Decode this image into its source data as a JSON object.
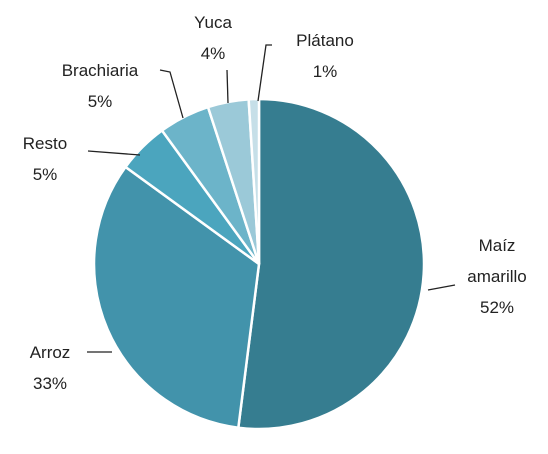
{
  "chart_data": {
    "type": "pie",
    "categories": [
      "Maíz amarillo",
      "Arroz",
      "Resto",
      "Brachiaria",
      "Yuca",
      "Plátano"
    ],
    "values": [
      52,
      33,
      5,
      5,
      4,
      1
    ],
    "value_labels": [
      "52%",
      "33%",
      "5%",
      "5%",
      "4%",
      "1%"
    ],
    "colors": [
      "#367d90",
      "#4293ab",
      "#4ba5be",
      "#6cb4c9",
      "#9bc9d8",
      "#c6dfe8"
    ]
  }
}
